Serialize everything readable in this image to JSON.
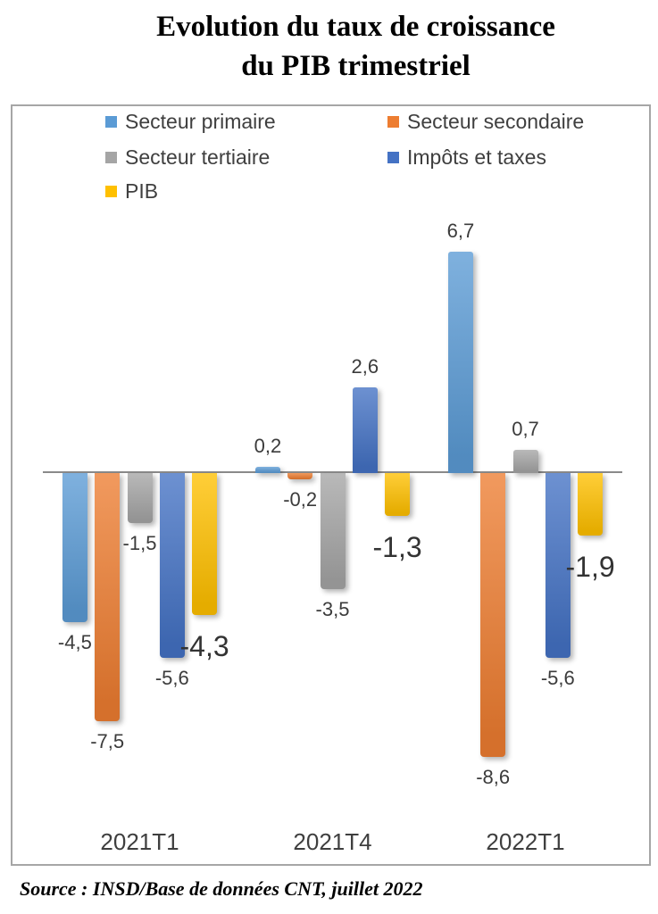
{
  "title": {
    "line1": "Evolution du taux de croissance",
    "line2": "du PIB trimestriel"
  },
  "source": "Source : INSD/Base de données CNT, juillet 2022",
  "chart_data": {
    "type": "bar",
    "title": "Evolution du taux de croissance du PIB trimestriel",
    "categories": [
      "2021T1",
      "2021T4",
      "2022T1"
    ],
    "series": [
      {
        "name": "Secteur primaire",
        "color": "#5B9BD5",
        "values": [
          -4.5,
          0.2,
          6.7
        ],
        "labels": [
          "-4,5",
          "0,2",
          "6,7"
        ],
        "label_size": "normal"
      },
      {
        "name": "Secteur secondaire",
        "color": "#ED7D31",
        "values": [
          -7.5,
          -0.2,
          -8.6
        ],
        "labels": [
          "-7,5",
          "-0,2",
          "-8,6"
        ],
        "label_size": "normal"
      },
      {
        "name": "Secteur tertiaire",
        "color": "#A5A5A5",
        "values": [
          -1.5,
          -3.5,
          0.7
        ],
        "labels": [
          "-1,5",
          "-3,5",
          "0,7"
        ],
        "label_size": "normal"
      },
      {
        "name": "Impôts et taxes",
        "color": "#4472C4",
        "values": [
          -5.6,
          2.6,
          -5.6
        ],
        "labels": [
          "-5,6",
          "2,6",
          "-5,6"
        ],
        "label_size": "normal"
      },
      {
        "name": "PIB",
        "color": "#FFC000",
        "values": [
          -4.3,
          -1.3,
          -1.9
        ],
        "labels": [
          "-4,3",
          "-1,3",
          "-1,9"
        ],
        "label_size": "large"
      }
    ],
    "xlabel": "",
    "ylabel": "",
    "ylim": [
      -9,
      7
    ],
    "grid": false,
    "legend_position": "top-inside",
    "axis_ticks_visible": false,
    "decimal_separator": ","
  }
}
